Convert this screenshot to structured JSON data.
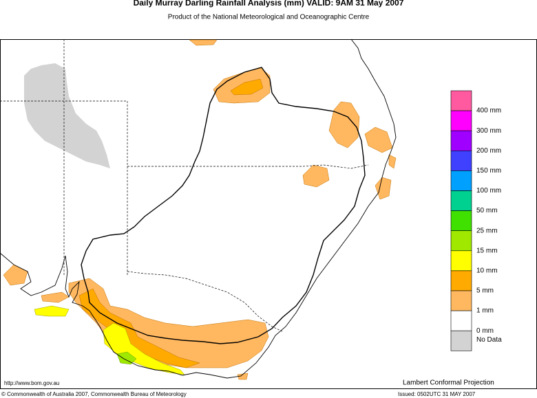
{
  "title": "Daily Murray Darling Rainfall Analysis (mm)  VALID: 9AM 31 May 2007",
  "subtitle": "Product of the National Meteorological and Oceanographic Centre",
  "legend": [
    {
      "color": "#ff5aa0",
      "label": "400 mm"
    },
    {
      "color": "#ff00ff",
      "label": "300 mm"
    },
    {
      "color": "#a000ff",
      "label": "200 mm"
    },
    {
      "color": "#4040ff",
      "label": "150 mm"
    },
    {
      "color": "#00a0ff",
      "label": "100 mm"
    },
    {
      "color": "#00d090",
      "label": "50 mm"
    },
    {
      "color": "#40e000",
      "label": "25 mm"
    },
    {
      "color": "#a0e800",
      "label": "15 mm"
    },
    {
      "color": "#ffff00",
      "label": "10 mm"
    },
    {
      "color": "#ffaa00",
      "label": "5 mm"
    },
    {
      "color": "#ffb860",
      "label": "1 mm"
    },
    {
      "color": "#ffffff",
      "label": "0 mm"
    },
    {
      "color": "#d3d3d3",
      "label": "No Data"
    }
  ],
  "footer": {
    "url": "http://www.bom.gov.au",
    "projection": "Lambert Conformal Projection",
    "copyright": "© Commonwealth of Australia 2007, Commonwealth Bureau of Meteorology",
    "issued": "Issued: 0502UTC 31 MAY 2007"
  }
}
